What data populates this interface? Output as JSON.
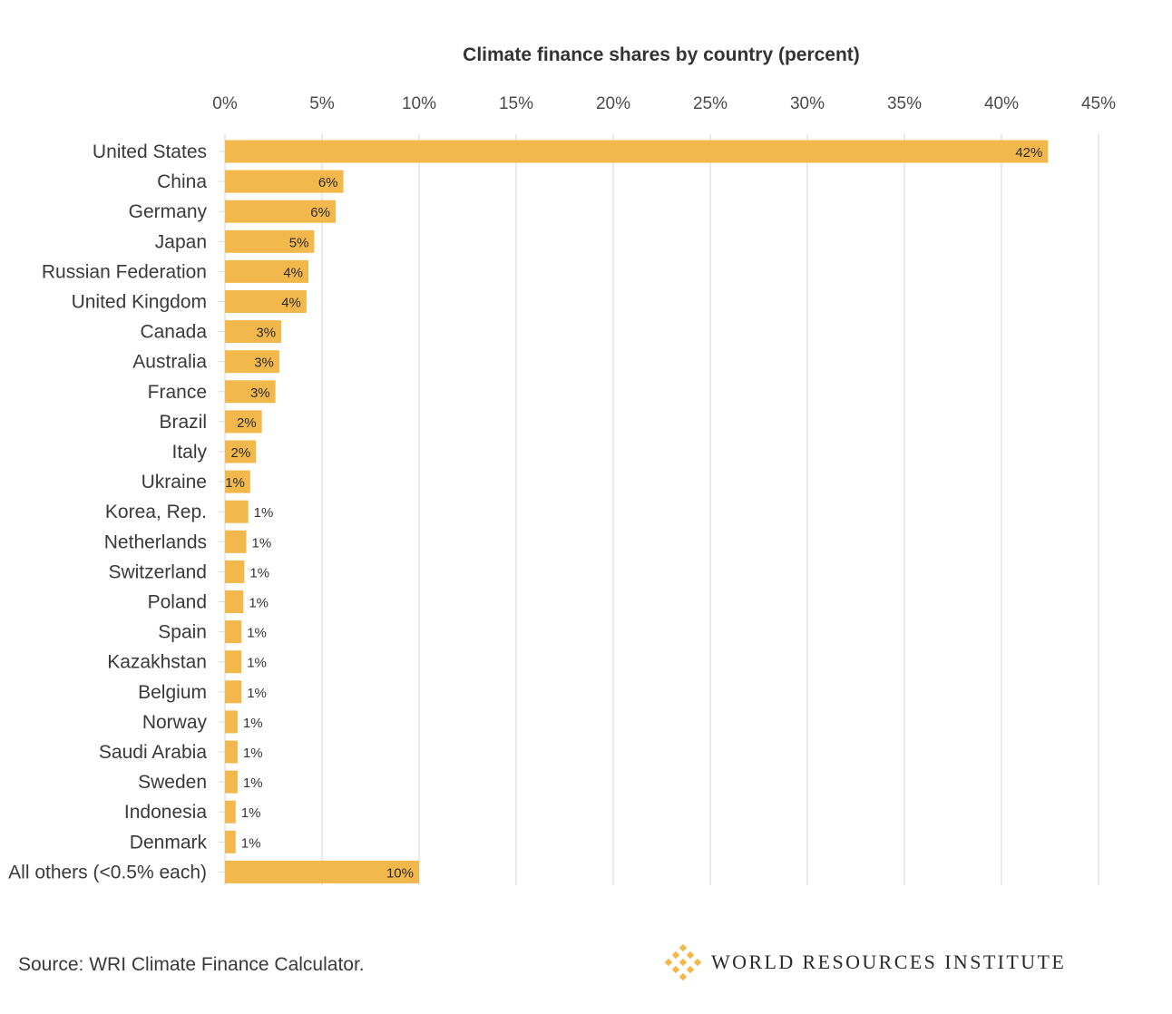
{
  "chart_data": {
    "type": "bar",
    "orientation": "horizontal",
    "title": "Climate finance shares by country (percent)",
    "x_axis": {
      "range": [
        0,
        45
      ],
      "ticks": [
        0,
        5,
        10,
        15,
        20,
        25,
        30,
        35,
        40,
        45
      ],
      "tick_labels": [
        "0%",
        "5%",
        "10%",
        "15%",
        "20%",
        "25%",
        "30%",
        "35%",
        "40%",
        "45%"
      ],
      "position": "top",
      "grid": true
    },
    "categories": [
      "United States",
      "China",
      "Germany",
      "Japan",
      "Russian Federation",
      "United Kingdom",
      "Canada",
      "Australia",
      "France",
      "Brazil",
      "Italy",
      "Ukraine",
      "Korea, Rep.",
      "Netherlands",
      "Switzerland",
      "Poland",
      "Spain",
      "Kazakhstan",
      "Belgium",
      "Norway",
      "Saudi Arabia",
      "Sweden",
      "Indonesia",
      "Denmark",
      "All others (<0.5% each)"
    ],
    "values": [
      42.4,
      6.1,
      5.7,
      4.6,
      4.3,
      4.2,
      2.9,
      2.8,
      2.6,
      1.9,
      1.6,
      1.3,
      1.2,
      1.1,
      1.0,
      0.95,
      0.85,
      0.85,
      0.85,
      0.65,
      0.65,
      0.65,
      0.55,
      0.55,
      10.0
    ],
    "value_labels": [
      "42%",
      "6%",
      "6%",
      "5%",
      "4%",
      "4%",
      "3%",
      "3%",
      "3%",
      "2%",
      "2%",
      "1%",
      "1%",
      "1%",
      "1%",
      "1%",
      "1%",
      "1%",
      "1%",
      "1%",
      "1%",
      "1%",
      "1%",
      "1%",
      "10%"
    ],
    "bar_color": "#F2B84B",
    "legend": "none"
  },
  "footer": {
    "source": "Source: WRI Climate Finance Calculator.",
    "logo_text": "WORLD RESOURCES INSTITUTE",
    "logo_color": "#F2B84B"
  }
}
